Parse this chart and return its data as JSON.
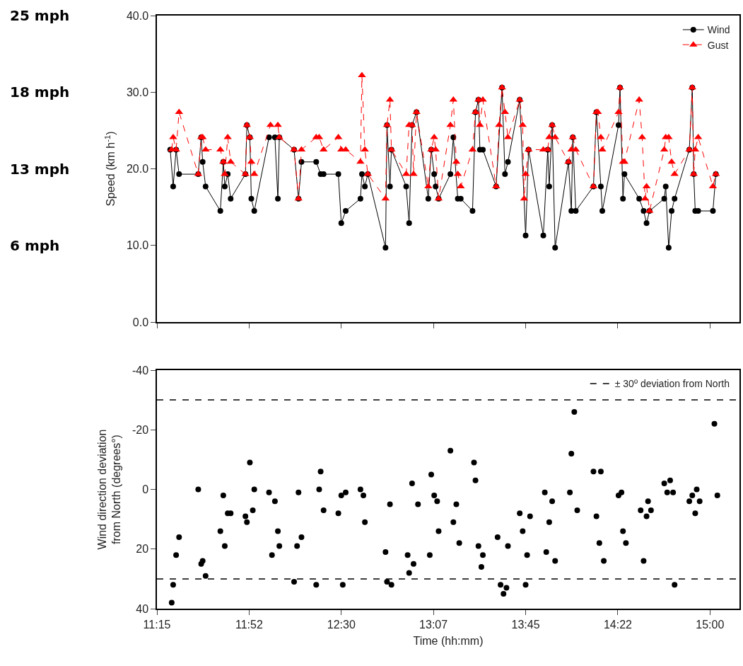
{
  "chart_data": [
    {
      "type": "line",
      "ylabel": "Speed (km h$^{-1}$)",
      "legend": "top right",
      "tick_labels": "y",
      "xlim": [
        11.25,
        15.2
      ],
      "xticks": [
        {
          "value": 11.25,
          "label": null
        },
        {
          "value": 11.875,
          "label": null
        },
        {
          "value": 12.5,
          "label": null
        },
        {
          "value": 13.125,
          "label": null
        },
        {
          "value": 13.75,
          "label": null
        },
        {
          "value": 14.375,
          "label": null
        },
        {
          "value": 15,
          "label": null
        }
      ],
      "ylim": [
        0,
        40
      ],
      "yticks": [
        {
          "value": 0,
          "label": "0.0"
        },
        {
          "value": 10,
          "label": "10.0"
        },
        {
          "value": 20,
          "label": "20.0"
        },
        {
          "value": 30,
          "label": "30.0"
        },
        {
          "value": 40,
          "label": "40.0"
        }
      ],
      "annotations": [
        "25 mph",
        "18 mph",
        "13 mph",
        "6 mph"
      ],
      "series": [
        {
          "name": "Wind",
          "color": "#000000",
          "marker": "circle",
          "line_style": "solid",
          "x": [
            11.34,
            11.36,
            11.38,
            11.4,
            11.53,
            11.55,
            11.56,
            11.58,
            11.68,
            11.7,
            11.71,
            11.73,
            11.75,
            11.85,
            11.86,
            11.88,
            11.89,
            11.91,
            12.01,
            12.05,
            12.07,
            12.08,
            12.18,
            12.21,
            12.23,
            12.33,
            12.36,
            12.38,
            12.48,
            12.5,
            12.53,
            12.63,
            12.64,
            12.66,
            12.68,
            12.8,
            12.81,
            12.83,
            12.84,
            12.94,
            12.96,
            12.98,
            13.01,
            13.09,
            13.11,
            13.13,
            13.14,
            13.16,
            13.24,
            13.26,
            13.29,
            13.31,
            13.39,
            13.41,
            13.43,
            13.44,
            13.46,
            13.55,
            13.59,
            13.61,
            13.63,
            13.71,
            13.75,
            13.77,
            13.87,
            13.9,
            13.91,
            13.93,
            13.95,
            14.04,
            14.06,
            14.07,
            14.09,
            14.21,
            14.23,
            14.26,
            14.27,
            14.38,
            14.39,
            14.41,
            14.42,
            14.52,
            14.55,
            14.57,
            14.59,
            14.69,
            14.7,
            14.72,
            14.74,
            14.76,
            14.86,
            14.88,
            14.89,
            14.9,
            14.92,
            15.02,
            15.04
          ],
          "values": [
            22.5,
            17.7,
            22.5,
            19.3,
            19.3,
            24.1,
            20.9,
            17.7,
            14.5,
            20.9,
            17.7,
            19.3,
            16.1,
            19.3,
            25.7,
            24.1,
            16.1,
            14.5,
            24.1,
            24.1,
            16.1,
            24.1,
            22.5,
            16.1,
            20.9,
            20.9,
            19.3,
            19.3,
            19.3,
            12.9,
            14.5,
            16.1,
            19.3,
            17.7,
            19.3,
            9.7,
            25.7,
            17.7,
            22.5,
            17.7,
            12.9,
            25.7,
            27.4,
            16.1,
            22.5,
            19.3,
            17.7,
            16.1,
            19.3,
            24.1,
            16.1,
            16.1,
            14.5,
            27.4,
            29.0,
            22.5,
            22.5,
            17.7,
            30.6,
            19.3,
            20.9,
            29.0,
            11.3,
            22.5,
            11.3,
            22.5,
            17.7,
            25.7,
            9.7,
            20.9,
            14.5,
            24.1,
            14.5,
            17.7,
            27.4,
            17.7,
            14.5,
            25.7,
            30.6,
            16.1,
            19.3,
            16.1,
            14.5,
            12.9,
            14.5,
            16.1,
            17.7,
            9.7,
            14.5,
            16.1,
            22.5,
            30.6,
            19.3,
            14.5,
            14.5,
            14.5,
            19.3
          ]
        },
        {
          "name": "Gust",
          "color": "#ff0000",
          "marker": "triangle",
          "line_style": "dashed",
          "x": [
            11.35,
            11.36,
            11.38,
            11.4,
            11.53,
            11.55,
            11.56,
            11.58,
            11.68,
            11.7,
            11.71,
            11.73,
            11.75,
            11.85,
            11.86,
            11.88,
            11.89,
            11.91,
            12.02,
            12.07,
            12.08,
            12.18,
            12.21,
            12.23,
            12.33,
            12.35,
            12.38,
            12.48,
            12.5,
            12.53,
            12.63,
            12.64,
            12.66,
            12.68,
            12.8,
            12.81,
            12.83,
            12.84,
            12.94,
            12.96,
            12.98,
            12.99,
            13.01,
            13.09,
            13.11,
            13.13,
            13.14,
            13.16,
            13.24,
            13.26,
            13.28,
            13.29,
            13.31,
            13.39,
            13.41,
            13.43,
            13.44,
            13.46,
            13.55,
            13.57,
            13.59,
            13.61,
            13.63,
            13.71,
            13.73,
            13.74,
            13.75,
            13.77,
            13.87,
            13.9,
            13.91,
            13.93,
            13.95,
            14.04,
            14.06,
            14.07,
            14.09,
            14.21,
            14.23,
            14.24,
            14.26,
            14.27,
            14.38,
            14.39,
            14.41,
            14.42,
            14.52,
            14.54,
            14.56,
            14.57,
            14.59,
            14.69,
            14.7,
            14.72,
            14.74,
            14.76,
            14.86,
            14.88,
            14.89,
            14.9,
            14.92,
            15.02,
            15.04
          ],
          "values": [
            22.5,
            24.1,
            22.5,
            27.4,
            19.3,
            24.1,
            24.1,
            22.5,
            22.5,
            20.9,
            19.3,
            24.1,
            20.9,
            19.3,
            25.7,
            24.1,
            20.9,
            19.3,
            25.7,
            25.7,
            24.1,
            22.5,
            16.1,
            22.5,
            24.1,
            24.1,
            22.5,
            24.1,
            22.5,
            22.5,
            20.9,
            32.2,
            22.5,
            19.3,
            16.1,
            25.7,
            29.0,
            22.5,
            19.3,
            25.7,
            25.7,
            19.3,
            27.4,
            17.7,
            22.5,
            24.1,
            22.5,
            16.1,
            25.7,
            29.0,
            20.9,
            19.3,
            17.7,
            22.5,
            27.4,
            29.0,
            25.7,
            29.0,
            17.7,
            25.7,
            30.6,
            27.4,
            24.1,
            29.0,
            25.7,
            16.1,
            19.3,
            22.5,
            22.5,
            22.5,
            24.1,
            25.7,
            24.1,
            20.9,
            22.5,
            24.1,
            22.5,
            17.7,
            27.4,
            27.4,
            24.1,
            22.5,
            27.4,
            30.6,
            20.9,
            20.9,
            29.0,
            24.1,
            16.1,
            17.7,
            14.5,
            22.5,
            24.1,
            24.1,
            20.9,
            19.3,
            22.5,
            30.6,
            19.3,
            22.5,
            24.1,
            17.7,
            19.3
          ]
        }
      ]
    },
    {
      "type": "scatter",
      "xlabel": "Time (hh:mm)",
      "ylabel": "Wind direction deviation from North (degrees°)",
      "legend": "top right",
      "marker": "circle",
      "color": "#000000",
      "xlim": [
        11.25,
        15.2
      ],
      "xticks": [
        {
          "value": 11.25,
          "label": "11:15"
        },
        {
          "value": 11.875,
          "label": "11:52"
        },
        {
          "value": 12.5,
          "label": "12:30"
        },
        {
          "value": 13.125,
          "label": "13:07"
        },
        {
          "value": 13.75,
          "label": "13:45"
        },
        {
          "value": 14.375,
          "label": "14:22"
        },
        {
          "value": 15,
          "label": "15:00"
        }
      ],
      "ylim": [
        40,
        -40
      ],
      "yticks": [
        -40,
        -20,
        0,
        20,
        40
      ],
      "ref_lines": [
        {
          "axis": "y",
          "value": -30,
          "label": "± 30º deviation from North",
          "line_style": "dashed",
          "color": "#000000"
        },
        {
          "axis": "y",
          "value": 30,
          "line_style": "dashed",
          "color": "#000000"
        }
      ],
      "x": [
        11.35,
        11.36,
        11.38,
        11.4,
        11.53,
        11.55,
        11.56,
        11.58,
        11.68,
        11.7,
        11.71,
        11.73,
        11.75,
        11.85,
        11.86,
        11.88,
        11.9,
        11.91,
        12.01,
        12.03,
        12.05,
        12.07,
        12.08,
        12.18,
        12.2,
        12.21,
        12.23,
        12.33,
        12.35,
        12.36,
        12.38,
        12.48,
        12.5,
        12.51,
        12.53,
        12.63,
        12.65,
        12.66,
        12.8,
        12.81,
        12.83,
        12.84,
        12.95,
        12.96,
        12.98,
        12.99,
        13.02,
        13.1,
        13.11,
        13.13,
        13.15,
        13.16,
        13.24,
        13.26,
        13.28,
        13.3,
        13.4,
        13.41,
        13.43,
        13.45,
        13.46,
        13.56,
        13.58,
        13.6,
        13.62,
        13.63,
        13.71,
        13.73,
        13.75,
        13.76,
        13.78,
        13.88,
        13.89,
        13.91,
        13.93,
        13.95,
        14.05,
        14.06,
        14.08,
        14.1,
        14.21,
        14.23,
        14.25,
        14.26,
        14.28,
        14.38,
        14.4,
        14.41,
        14.43,
        14.53,
        14.55,
        14.57,
        14.58,
        14.6,
        14.69,
        14.71,
        14.73,
        14.75,
        14.76,
        14.86,
        14.88,
        14.9,
        14.91,
        14.93,
        15.03,
        15.05
      ],
      "values": [
        38,
        32,
        22,
        16,
        0,
        25,
        24,
        29,
        14,
        2,
        19,
        8,
        8,
        9,
        11,
        -9,
        7,
        0,
        1,
        22,
        4,
        14,
        19,
        31,
        19,
        1,
        16,
        32,
        0,
        -6,
        7,
        8,
        2,
        32,
        1,
        0,
        2,
        11,
        21,
        31,
        5,
        32,
        22,
        28,
        -2,
        25,
        5,
        22,
        -5,
        2,
        4,
        14,
        -13,
        11,
        5,
        18,
        -9,
        -3,
        19,
        26,
        22,
        16,
        32,
        35,
        33,
        19,
        8,
        14,
        32,
        22,
        9,
        1,
        21,
        11,
        4,
        24,
        1,
        -12,
        -26,
        7,
        -6,
        9,
        18,
        -6,
        24,
        2,
        1,
        14,
        18,
        7,
        24,
        9,
        4,
        7,
        -2,
        1,
        -3,
        1,
        32,
        4,
        2,
        8,
        0,
        4,
        -22,
        2
      ]
    }
  ]
}
